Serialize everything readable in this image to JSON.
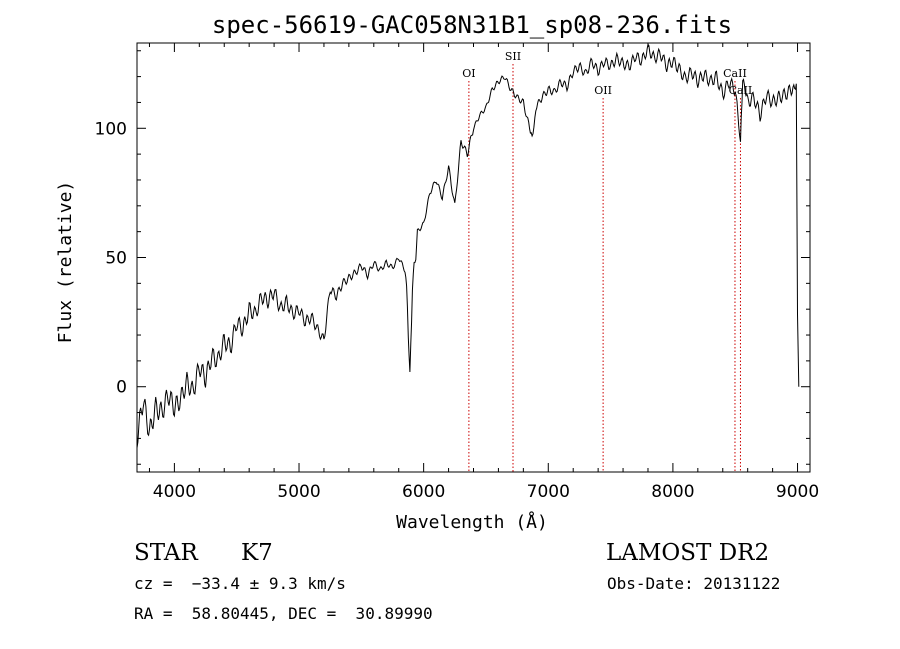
{
  "chart_data": {
    "type": "line",
    "title": "spec-56619-GAC058N31B1_sp08-236.fits",
    "xlabel": "Wavelength (Å)",
    "ylabel": "Flux (relative)",
    "xlim": [
      3700,
      9100
    ],
    "ylim": [
      -33,
      133
    ],
    "xticks": [
      "4000",
      "5000",
      "6000",
      "7000",
      "8000",
      "9000"
    ],
    "yticks": [
      "0",
      "50",
      "100"
    ],
    "grid": false,
    "series": [
      {
        "x": [
          3700,
          3750,
          3800,
          3850,
          3900,
          3950,
          4000,
          4050,
          4100,
          4150,
          4200,
          4250,
          4300,
          4350,
          4400,
          4450,
          4500,
          4550,
          4600,
          4650,
          4700,
          4750,
          4800,
          4850,
          4900,
          4950,
          5000,
          5050,
          5100,
          5150,
          5200,
          5250,
          5300,
          5350,
          5400,
          5450,
          5500,
          5550,
          5600,
          5650,
          5700,
          5750,
          5800,
          5850,
          5870,
          5890,
          5910,
          5950,
          6000,
          6050,
          6100,
          6150,
          6200,
          6250,
          6300,
          6350,
          6400,
          6450,
          6500,
          6550,
          6600,
          6650,
          6700,
          6750,
          6800,
          6850,
          6870,
          6900,
          6950,
          7000,
          7050,
          7100,
          7150,
          7200,
          7250,
          7300,
          7350,
          7400,
          7450,
          7500,
          7550,
          7600,
          7650,
          7700,
          7750,
          7800,
          7850,
          7900,
          7950,
          8000,
          8050,
          8100,
          8150,
          8200,
          8250,
          8300,
          8350,
          8400,
          8450,
          8500,
          8542,
          8560,
          8600,
          8650,
          8700,
          8750,
          8800,
          8850,
          8900,
          8950,
          8990,
          9000,
          9010
        ],
        "values": [
          -20,
          -5,
          -18,
          -8,
          -10,
          -3,
          -8,
          -5,
          2,
          -2,
          8,
          3,
          12,
          10,
          18,
          15,
          25,
          22,
          30,
          28,
          35,
          33,
          37,
          30,
          33,
          28,
          30,
          25,
          27,
          22,
          18,
          38,
          35,
          40,
          42,
          44,
          47,
          43,
          48,
          45,
          48,
          46,
          50,
          45,
          30,
          3,
          40,
          60,
          63,
          75,
          80,
          73,
          85,
          70,
          95,
          90,
          100,
          105,
          108,
          115,
          118,
          120,
          115,
          112,
          110,
          100,
          95,
          108,
          112,
          115,
          114,
          118,
          116,
          122,
          124,
          121,
          126,
          122,
          126,
          124,
          127,
          125,
          124,
          128,
          126,
          131,
          127,
          129,
          124,
          126,
          123,
          119,
          122,
          118,
          121,
          118,
          120,
          113,
          118,
          115,
          95,
          118,
          110,
          112,
          105,
          113,
          110,
          112,
          113,
          115,
          118,
          30,
          0
        ]
      }
    ],
    "annotations": [
      "OI",
      "SII",
      "OII",
      "CaII",
      "CaII"
    ],
    "annotation_x": [
      6363,
      6717,
      7440,
      8498,
      8542
    ]
  },
  "info": {
    "object_class": "STAR",
    "subclass": "K7",
    "survey": "LAMOST DR2",
    "redshift": "cz =  −33.4 ± 9.3 km/s",
    "obs_date": "Obs-Date: 20131122",
    "coords": "RA =  58.80445, DEC =  30.89990"
  }
}
